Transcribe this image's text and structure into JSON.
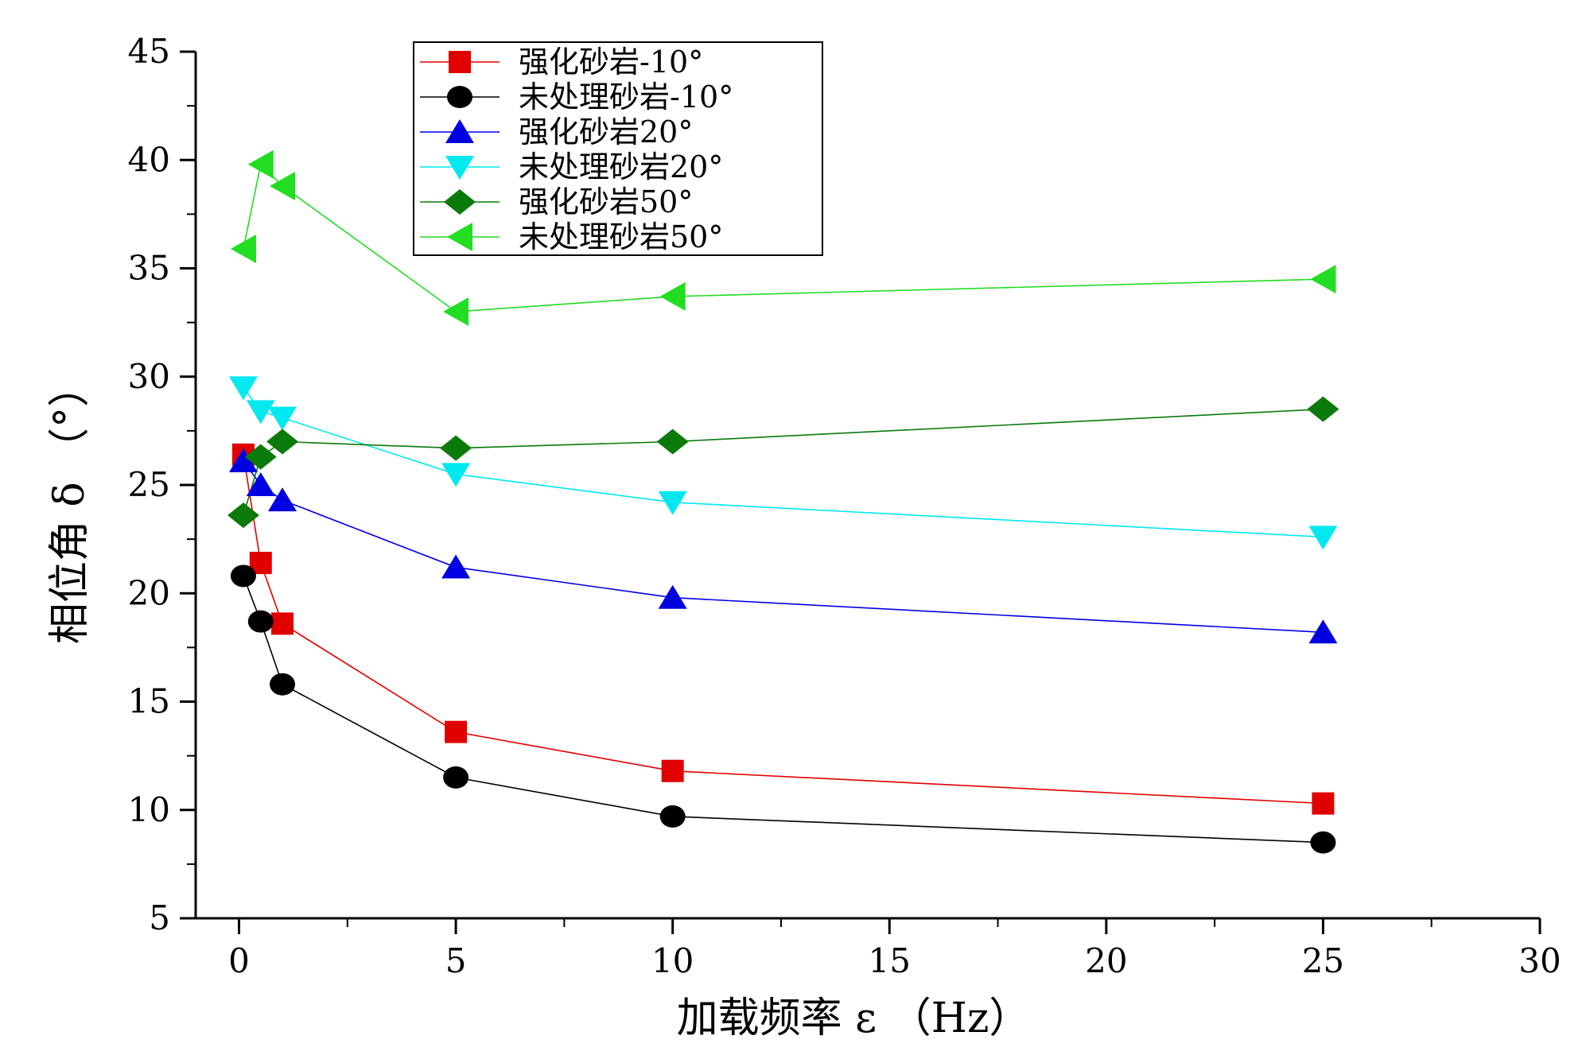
{
  "chart_data": {
    "type": "line",
    "title": "",
    "xlabel": "加载频率 ε （Hz）",
    "ylabel": "相位角 δ （°）",
    "xlim": [
      -1,
      30
    ],
    "ylim": [
      5,
      45
    ],
    "xticks": [
      0,
      5,
      10,
      15,
      20,
      25,
      30
    ],
    "yticks": [
      5,
      10,
      15,
      20,
      25,
      30,
      35,
      40,
      45
    ],
    "x": [
      0.1,
      0.5,
      1,
      5,
      10,
      25
    ],
    "legend_position": "top-center",
    "series": [
      {
        "name": "强化砂岩-10°",
        "color": "#e00000",
        "marker": "square",
        "values": [
          26.4,
          21.4,
          18.6,
          13.6,
          11.8,
          10.3
        ]
      },
      {
        "name": "未处理砂岩-10°",
        "color": "#000000",
        "marker": "circle",
        "values": [
          20.8,
          18.7,
          15.8,
          11.5,
          9.7,
          8.5
        ]
      },
      {
        "name": "强化砂岩20°",
        "color": "#0000e0",
        "marker": "triangle-up",
        "values": [
          26.1,
          25.0,
          24.3,
          21.2,
          19.8,
          18.2
        ]
      },
      {
        "name": "未处理砂岩20°",
        "color": "#00e8f0",
        "marker": "triangle-down",
        "values": [
          29.5,
          28.4,
          28.1,
          25.5,
          24.2,
          22.6
        ]
      },
      {
        "name": "强化砂岩50°",
        "color": "#0a7a0a",
        "marker": "diamond",
        "values": [
          23.6,
          26.3,
          27.0,
          26.7,
          27.0,
          28.5
        ]
      },
      {
        "name": "未处理砂岩50°",
        "color": "#22dd22",
        "marker": "triangle-left",
        "values": [
          35.9,
          39.8,
          38.8,
          33.0,
          33.7,
          34.5
        ]
      }
    ]
  }
}
